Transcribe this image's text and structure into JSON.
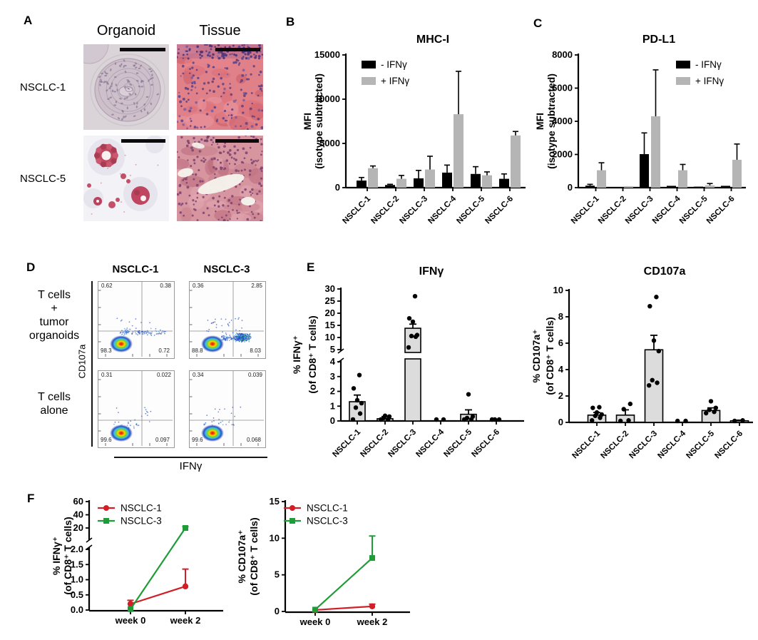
{
  "style": {
    "red": "#d01f26",
    "green": "#1f9c37",
    "bar_black": "#000000",
    "bar_gray": "#b5b5b5",
    "scatter_bar_fill": "#dcdcdc"
  },
  "panels": {
    "A": {
      "label": "A",
      "col_headers": [
        "Organoid",
        "Tissue"
      ],
      "row_labels": [
        "NSCLC-1",
        "NSCLC-5"
      ],
      "images": [
        "nsclc1-organoid-he",
        "nsclc1-tissue-he",
        "nsclc5-organoid-he",
        "nsclc5-tissue-he"
      ]
    },
    "B": {
      "label": "B"
    },
    "C": {
      "label": "C"
    },
    "D": {
      "label": "D",
      "col_titles": [
        "NSCLC-1",
        "NSCLC-3"
      ],
      "row_labels_top": [
        "T cells",
        "+",
        "tumor",
        "organoids"
      ],
      "row_labels_bottom": [
        "T cells",
        "alone"
      ],
      "y_axis_label": "CD107a",
      "x_axis_label": "IFNγ",
      "plots": [
        {
          "condition": "T cells + tumor organoids",
          "line": "NSCLC-1",
          "quadrants": {
            "ul": "0.62",
            "ur": "0.38",
            "ll": "98.3",
            "lr": "0.72"
          }
        },
        {
          "condition": "T cells + tumor organoids",
          "line": "NSCLC-3",
          "quadrants": {
            "ul": "0.36",
            "ur": "2.85",
            "ll": "88.8",
            "lr": "8.03"
          }
        },
        {
          "condition": "T cells alone",
          "line": "NSCLC-1",
          "quadrants": {
            "ul": "0.31",
            "ur": "0.022",
            "ll": "99.6",
            "lr": "0.097"
          }
        },
        {
          "condition": "T cells alone",
          "line": "NSCLC-3",
          "quadrants": {
            "ul": "0.34",
            "ur": "0.039",
            "ll": "99.6",
            "lr": "0.068"
          }
        }
      ]
    },
    "E": {
      "label": "E"
    },
    "F": {
      "label": "F"
    }
  },
  "chart_data": [
    {
      "id": "mhc1",
      "panel": "B",
      "type": "bar",
      "title": "MHC-I",
      "ylabel_lines": [
        "MFI",
        "(isotype subtracted)"
      ],
      "categories": [
        "NSCLC-1",
        "NSCLC-2",
        "NSCLC-3",
        "NSCLC-4",
        "NSCLC-5",
        "NSCLC-6"
      ],
      "ylim": [
        0,
        15000
      ],
      "yticks": [
        0,
        5000,
        10000,
        15000
      ],
      "legend_position": "top-left",
      "series": [
        {
          "name": "- IFNγ",
          "color": "#000000",
          "values": [
            800,
            300,
            1050,
            1700,
            1550,
            1000
          ],
          "errors": [
            350,
            80,
            900,
            850,
            820,
            550
          ]
        },
        {
          "name": "+ IFNγ",
          "color": "#b5b5b5",
          "values": [
            2200,
            1000,
            2050,
            8300,
            1400,
            5900
          ],
          "errors": [
            250,
            380,
            1500,
            4850,
            380,
            450
          ]
        }
      ]
    },
    {
      "id": "pdl1",
      "panel": "C",
      "type": "bar",
      "title": "PD-L1",
      "ylabel_lines": [
        "MFI",
        "(isotype subtracted)"
      ],
      "categories": [
        "NSCLC-1",
        "NSCLC-2",
        "NSCLC-3",
        "NSCLC-4",
        "NSCLC-5",
        "NSCLC-6"
      ],
      "ylim": [
        0,
        8000
      ],
      "yticks": [
        0,
        2000,
        4000,
        6000,
        8000
      ],
      "legend_position": "top-right",
      "series": [
        {
          "name": "- IFNγ",
          "color": "#000000",
          "values": [
            120,
            40,
            2020,
            110,
            60,
            110
          ],
          "errors": [
            80,
            0,
            1280,
            0,
            0,
            0
          ]
        },
        {
          "name": "+ IFNγ",
          "color": "#b5b5b5",
          "values": [
            1050,
            90,
            4300,
            1050,
            140,
            1680
          ],
          "errors": [
            450,
            0,
            2800,
            350,
            110,
            950
          ]
        }
      ]
    },
    {
      "id": "ifng-scatter",
      "panel": "E",
      "type": "scatter-bar",
      "title": "IFNγ",
      "ylabel_lines": [
        "% IFNγ⁺",
        "(of CD8⁺ T cells)"
      ],
      "categories": [
        "NSCLC-1",
        "NSCLC-2",
        "NSCLC-3",
        "NSCLC-4",
        "NSCLC-5",
        "NSCLC-6"
      ],
      "axis_break": {
        "lower": [
          0,
          4
        ],
        "upper": [
          5,
          30
        ],
        "lower_ticks": [
          0,
          1,
          2,
          3,
          4
        ],
        "upper_ticks": [
          5,
          10,
          15,
          20,
          25,
          30
        ]
      },
      "bar_values": [
        1.3,
        0.15,
        13.8,
        0.02,
        0.45,
        0.04
      ],
      "bar_errors": [
        0.45,
        0.15,
        1.7,
        0,
        0.3,
        0
      ],
      "points": [
        [
          0.1,
          0.5,
          0.9,
          1.2,
          1.4,
          2.2,
          3.1
        ],
        [
          0.05,
          0.1,
          0.2,
          0.3,
          0.35
        ],
        [
          5.9,
          10.3,
          10.6,
          11,
          16.5,
          17.9,
          27
        ],
        [
          0.02,
          0.04
        ],
        [
          0.05,
          0.1,
          0.2,
          0.3,
          1.8
        ],
        [
          0.03,
          0.05,
          0.08
        ]
      ]
    },
    {
      "id": "cd107a-scatter",
      "panel": "E",
      "type": "scatter-bar",
      "title": "CD107a",
      "ylabel_lines": [
        "% CD107a⁺",
        "(of CD8⁺ T cells)"
      ],
      "categories": [
        "NSCLC-1",
        "NSCLC-2",
        "NSCLC-3",
        "NSCLC-4",
        "NSCLC-5",
        "NSCLC-6"
      ],
      "ylim": [
        0,
        10
      ],
      "yticks": [
        0,
        2,
        4,
        6,
        8,
        10
      ],
      "bar_values": [
        0.55,
        0.55,
        5.5,
        0.03,
        0.9,
        0.12
      ],
      "bar_errors": [
        0.2,
        0.4,
        1.1,
        0,
        0.2,
        0.05
      ],
      "points": [
        [
          0.15,
          0.35,
          0.5,
          0.6,
          0.75,
          1.1,
          1.15
        ],
        [
          0.05,
          0.15,
          1.0,
          1.4
        ],
        [
          2.8,
          3.0,
          3.2,
          5.4,
          6.2,
          8.8,
          9.5
        ],
        [
          0.02,
          0.05
        ],
        [
          0.7,
          0.8,
          0.95,
          1.1,
          1.6
        ],
        [
          0.1,
          0.15
        ]
      ]
    },
    {
      "id": "ifng-line",
      "panel": "F",
      "type": "line",
      "ylabel_lines": [
        "% IFNγ⁺",
        "(of CD8⁺ T cells)"
      ],
      "x_categories": [
        "week 0",
        "week 2"
      ],
      "axis_break": {
        "lower": [
          0,
          2
        ],
        "upper": [
          20,
          60
        ],
        "lower_ticks": [
          0,
          0.5,
          1,
          1.5,
          2
        ],
        "lower_tick_labels": [
          "0.0",
          "0.5",
          "1.0",
          "1.5",
          "2.0"
        ],
        "upper_ticks": [
          20,
          40,
          60
        ]
      },
      "series": [
        {
          "name": "NSCLC-1",
          "color": "#d01f26",
          "marker": "circle",
          "values": [
            0.2,
            0.78
          ],
          "errors": [
            0.12,
            0.57
          ]
        },
        {
          "name": "NSCLC-3",
          "color": "#1f9c37",
          "marker": "square",
          "values": [
            0.03,
            20
          ],
          "errors": [
            0,
            2
          ]
        }
      ]
    },
    {
      "id": "cd107a-line",
      "panel": "F",
      "type": "line",
      "ylabel_lines": [
        "% CD107a⁺",
        "(of CD8⁺ T cells)"
      ],
      "x_categories": [
        "week 0",
        "week 2"
      ],
      "ylim": [
        0,
        15
      ],
      "yticks": [
        0,
        5,
        10,
        15
      ],
      "series": [
        {
          "name": "NSCLC-1",
          "color": "#d01f26",
          "marker": "circle",
          "values": [
            0.2,
            0.7
          ],
          "errors": [
            0,
            0.3
          ]
        },
        {
          "name": "NSCLC-3",
          "color": "#1f9c37",
          "marker": "square",
          "values": [
            0.25,
            7.3
          ],
          "errors": [
            0,
            3.0
          ]
        }
      ]
    }
  ]
}
